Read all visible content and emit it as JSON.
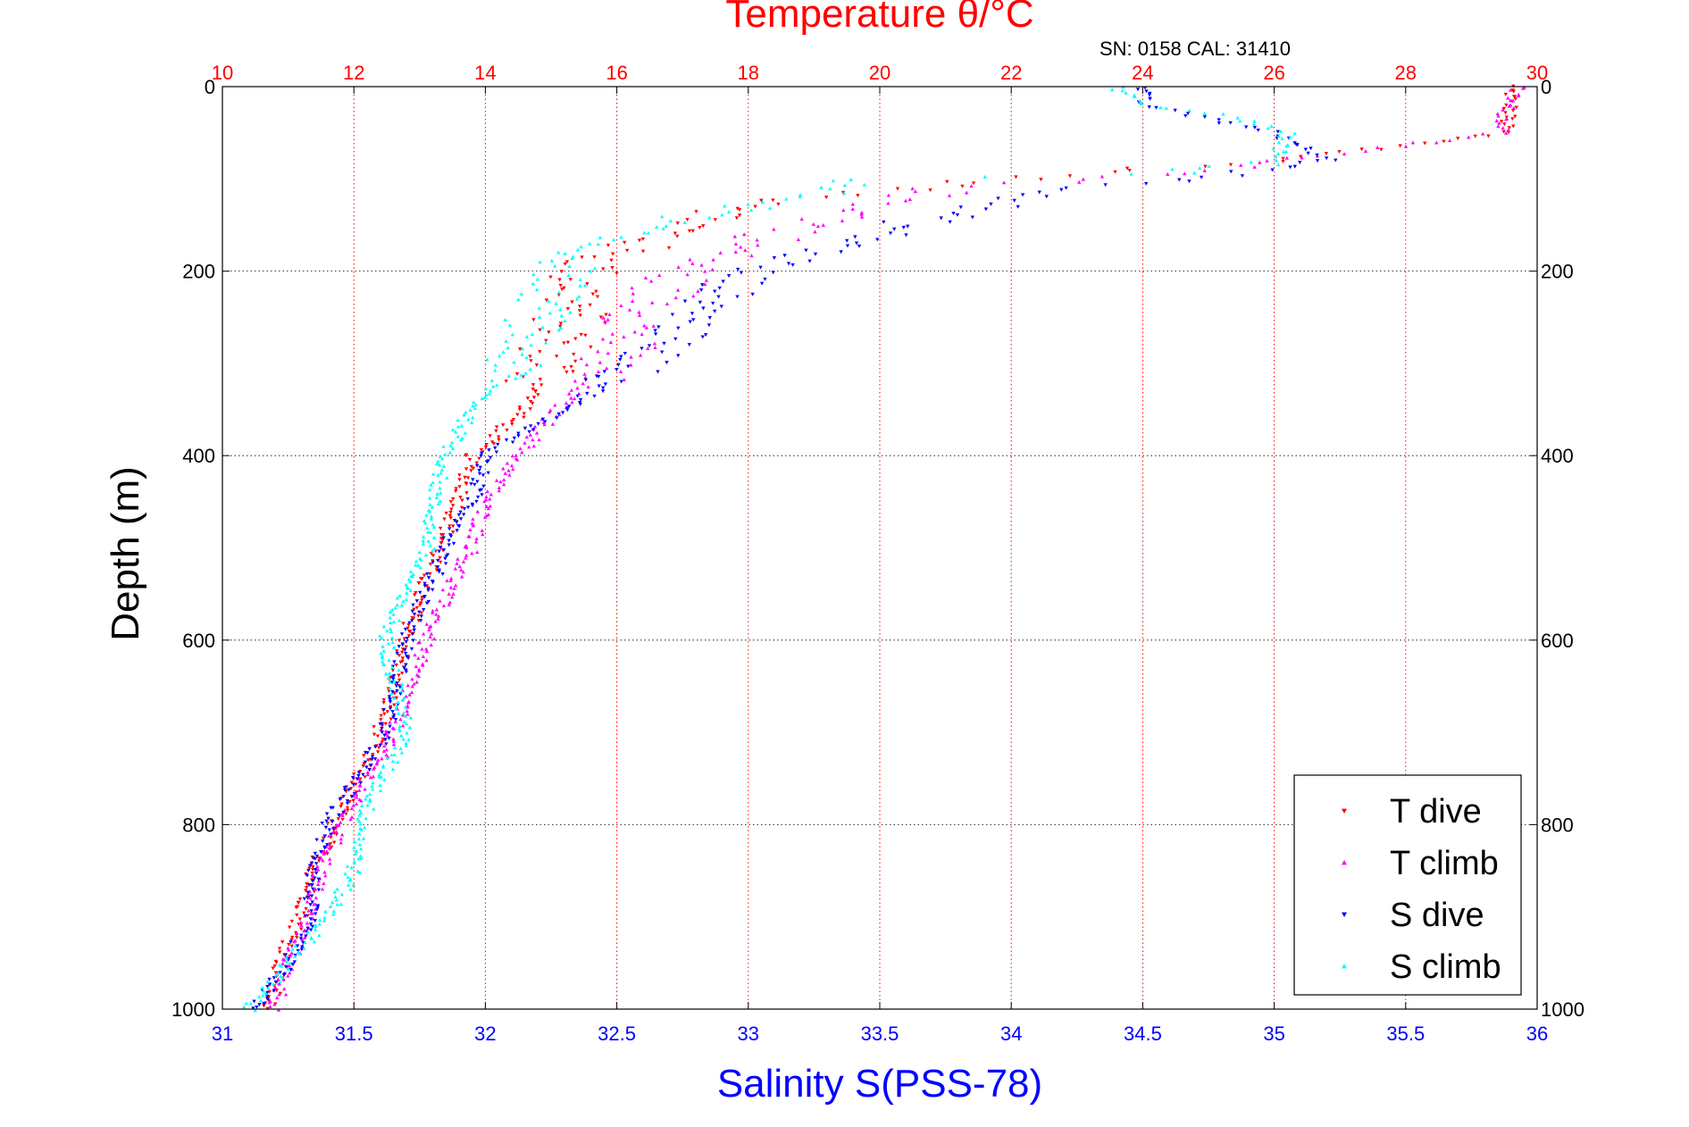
{
  "chart_data": {
    "type": "scatter",
    "title": "Temperature θ/°C",
    "subtitle": "SN: 0158  CAL: 31410",
    "xlabel": "Salinity S(PSS-78)",
    "ylabel": "Depth (m)",
    "xlim_salinity": [
      31,
      36
    ],
    "xlim_temperature": [
      10,
      30
    ],
    "ylim": [
      1000,
      0
    ],
    "x_ticks": [
      "31",
      "31.5",
      "32",
      "32.5",
      "33",
      "33.5",
      "34",
      "34.5",
      "35",
      "35.5",
      "36"
    ],
    "top_ticks": [
      "10",
      "12",
      "14",
      "16",
      "18",
      "20",
      "22",
      "24",
      "26",
      "28",
      "30"
    ],
    "y_ticks": [
      "0",
      "200",
      "400",
      "600",
      "800",
      "1000"
    ],
    "grid": true,
    "legend_position": "bottom-right",
    "colors": {
      "temperature_axis": "#ff0000",
      "salinity_axis": "#0000ff",
      "t_dive": "#ff0000",
      "t_climb": "#ff00ff",
      "s_dive": "#0000ff",
      "s_climb": "#00ffff"
    },
    "series": [
      {
        "name": "T dive",
        "axis": "temperature",
        "marker": "triangle-down",
        "profile": [
          [
            0,
            29.6
          ],
          [
            20,
            29.6
          ],
          [
            50,
            29.5
          ],
          [
            60,
            28.5
          ],
          [
            80,
            26.0
          ],
          [
            90,
            24.0
          ],
          [
            100,
            22.0
          ],
          [
            110,
            20.5
          ],
          [
            120,
            19.0
          ],
          [
            140,
            17.5
          ],
          [
            160,
            16.8
          ],
          [
            180,
            16.0
          ],
          [
            200,
            15.5
          ],
          [
            250,
            15.3
          ],
          [
            300,
            15.0
          ],
          [
            350,
            14.6
          ],
          [
            400,
            13.8
          ],
          [
            450,
            13.6
          ],
          [
            500,
            13.3
          ],
          [
            550,
            13.0
          ],
          [
            600,
            12.8
          ],
          [
            700,
            12.4
          ],
          [
            800,
            11.7
          ],
          [
            850,
            11.4
          ],
          [
            900,
            11.2
          ],
          [
            950,
            10.9
          ],
          [
            1000,
            10.7
          ]
        ]
      },
      {
        "name": "T climb",
        "axis": "temperature",
        "marker": "triangle-up",
        "profile": [
          [
            0,
            29.7
          ],
          [
            30,
            29.5
          ],
          [
            50,
            29.5
          ],
          [
            60,
            28.5
          ],
          [
            75,
            26.5
          ],
          [
            90,
            25.0
          ],
          [
            100,
            23.0
          ],
          [
            110,
            21.0
          ],
          [
            130,
            20.0
          ],
          [
            150,
            19.0
          ],
          [
            170,
            18.0
          ],
          [
            200,
            17.0
          ],
          [
            250,
            16.4
          ],
          [
            300,
            15.8
          ],
          [
            350,
            15.1
          ],
          [
            400,
            14.5
          ],
          [
            450,
            14.0
          ],
          [
            500,
            13.8
          ],
          [
            550,
            13.4
          ],
          [
            600,
            13.1
          ],
          [
            700,
            12.6
          ],
          [
            800,
            11.8
          ],
          [
            850,
            11.5
          ],
          [
            900,
            11.3
          ],
          [
            950,
            11.0
          ],
          [
            1000,
            10.8
          ]
        ]
      },
      {
        "name": "S dive",
        "axis": "salinity",
        "marker": "triangle-down",
        "profile": [
          [
            0,
            34.5
          ],
          [
            20,
            34.5
          ],
          [
            50,
            35.0
          ],
          [
            80,
            35.2
          ],
          [
            95,
            34.9
          ],
          [
            110,
            34.3
          ],
          [
            130,
            33.9
          ],
          [
            150,
            33.6
          ],
          [
            170,
            33.4
          ],
          [
            200,
            33.0
          ],
          [
            250,
            32.8
          ],
          [
            300,
            32.6
          ],
          [
            350,
            32.3
          ],
          [
            400,
            32.0
          ],
          [
            450,
            31.95
          ],
          [
            500,
            31.85
          ],
          [
            600,
            31.7
          ],
          [
            700,
            31.62
          ],
          [
            800,
            31.4
          ],
          [
            850,
            31.35
          ],
          [
            900,
            31.33
          ],
          [
            950,
            31.25
          ],
          [
            1000,
            31.12
          ]
        ]
      },
      {
        "name": "S climb",
        "axis": "salinity",
        "marker": "triangle-up",
        "profile": [
          [
            0,
            34.4
          ],
          [
            20,
            34.5
          ],
          [
            30,
            34.8
          ],
          [
            50,
            35.05
          ],
          [
            80,
            35.0
          ],
          [
            95,
            34.6
          ],
          [
            100,
            33.4
          ],
          [
            120,
            33.2
          ],
          [
            140,
            32.8
          ],
          [
            160,
            32.5
          ],
          [
            180,
            32.35
          ],
          [
            200,
            32.3
          ],
          [
            250,
            32.2
          ],
          [
            300,
            32.1
          ],
          [
            350,
            31.95
          ],
          [
            400,
            31.85
          ],
          [
            450,
            31.8
          ],
          [
            500,
            31.78
          ],
          [
            550,
            31.68
          ],
          [
            600,
            31.62
          ],
          [
            700,
            31.7
          ],
          [
            780,
            31.55
          ],
          [
            850,
            31.5
          ],
          [
            900,
            31.4
          ],
          [
            950,
            31.25
          ],
          [
            1000,
            31.1
          ]
        ]
      }
    ]
  }
}
